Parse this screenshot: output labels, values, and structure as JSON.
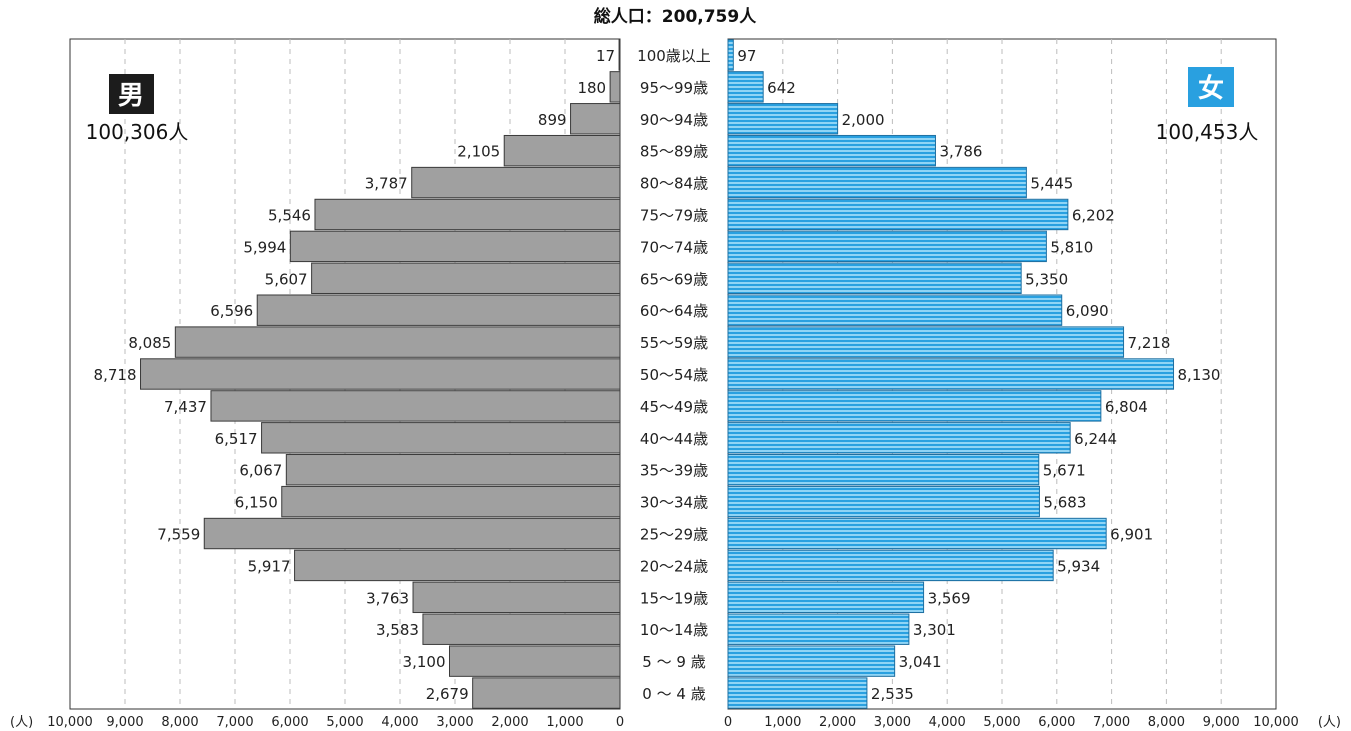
{
  "chart_data": {
    "type": "bar",
    "title": "総人口：200,759人",
    "unit_label": "(人)",
    "categories": [
      "100歳以上",
      "95〜99歳",
      "90〜94歳",
      "85〜89歳",
      "80〜84歳",
      "75〜79歳",
      "70〜74歳",
      "65〜69歳",
      "60〜64歳",
      "55〜59歳",
      "50〜54歳",
      "45〜49歳",
      "40〜44歳",
      "35〜39歳",
      "30〜34歳",
      "25〜29歳",
      "20〜24歳",
      "15〜19歳",
      "10〜14歳",
      "5 〜 9 歳",
      "0 〜 4 歳"
    ],
    "series": [
      {
        "name": "男",
        "total_label": "100,306人",
        "color": "#a0a0a0",
        "values": [
          17,
          180,
          899,
          2105,
          3787,
          5546,
          5994,
          5607,
          6596,
          8085,
          8718,
          7437,
          6517,
          6067,
          6150,
          7559,
          5917,
          3763,
          3583,
          3100,
          2679
        ],
        "value_labels": [
          "17",
          "180",
          "899",
          "2,105",
          "3,787",
          "5,546",
          "5,994",
          "5,607",
          "6,596",
          "8,085",
          "8,718",
          "7,437",
          "6,517",
          "6,067",
          "6,150",
          "7,559",
          "5,917",
          "3,763",
          "3,583",
          "3,100",
          "2,679"
        ]
      },
      {
        "name": "女",
        "total_label": "100,453人",
        "color": "#29a0e0",
        "values": [
          97,
          642,
          2000,
          3786,
          5445,
          6202,
          5810,
          5350,
          6090,
          7218,
          8130,
          6804,
          6244,
          5671,
          5683,
          6901,
          5934,
          3569,
          3301,
          3041,
          2535
        ],
        "value_labels": [
          "97",
          "642",
          "2,000",
          "3,786",
          "5,445",
          "6,202",
          "5,810",
          "5,350",
          "6,090",
          "7,218",
          "8,130",
          "6,804",
          "6,244",
          "5,671",
          "5,683",
          "6,901",
          "5,934",
          "3,569",
          "3,301",
          "3,041",
          "2,535"
        ]
      }
    ],
    "xlim": [
      0,
      10000
    ],
    "male_ticks": [
      "10,000",
      "9,000",
      "8,000",
      "7,000",
      "6,000",
      "5,000",
      "4,000",
      "3,000",
      "2,000",
      "1,000",
      "0"
    ],
    "female_ticks": [
      "0",
      "1,000",
      "2,000",
      "3,000",
      "4,000",
      "5,000",
      "6,000",
      "7,000",
      "8,000",
      "9,000",
      "10,000"
    ],
    "grid": "vertical-dashed",
    "male_label_color": "#1a1a1a",
    "female_label_color": "#29a0e0"
  }
}
